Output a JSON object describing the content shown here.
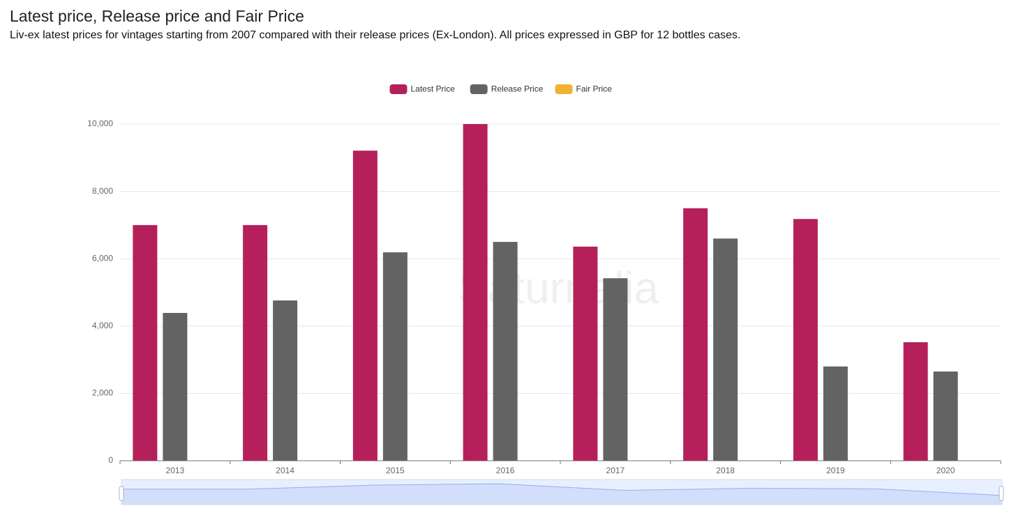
{
  "chart_data": {
    "type": "bar",
    "title": "Latest price, Release price and Fair Price",
    "subtitle": "Liv-ex latest prices for vintages starting from 2007 compared with their release prices (Ex-London). All prices expressed in GBP for 12 bottles cases.",
    "watermark": "Saturnalia",
    "categories": [
      "2013",
      "2014",
      "2015",
      "2016",
      "2017",
      "2018",
      "2019",
      "2020"
    ],
    "series": [
      {
        "name": "Latest Price",
        "color": "#b5205a",
        "values": [
          7000,
          7000,
          9210,
          10000,
          6360,
          7500,
          7180,
          3520
        ]
      },
      {
        "name": "Release Price",
        "color": "#636363",
        "values": [
          4390,
          4760,
          6190,
          6500,
          5420,
          6600,
          2800,
          2650
        ]
      },
      {
        "name": "Fair Price",
        "color": "#f2b134",
        "values": [
          null,
          null,
          null,
          null,
          null,
          null,
          null,
          null
        ]
      }
    ],
    "ylim": [
      0,
      10000
    ],
    "yticks": [
      0,
      {
        "value": 2000,
        "label": "2,000"
      },
      {
        "value": 4000,
        "label": "4,000"
      },
      {
        "value": 6000,
        "label": "6,000"
      },
      {
        "value": 8000,
        "label": "8,000"
      },
      {
        "value": 10000,
        "label": "10,000"
      }
    ],
    "grid": true,
    "legend": "top"
  }
}
